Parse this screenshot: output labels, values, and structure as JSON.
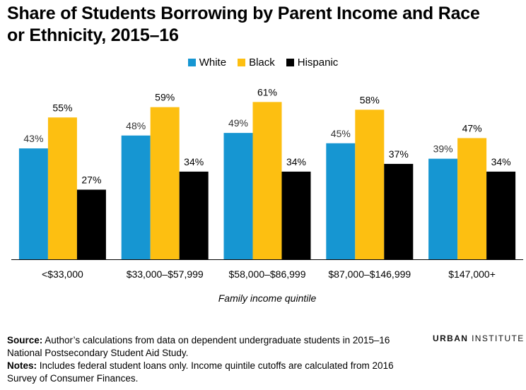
{
  "title": "Share of Students Borrowing by Parent Income and Race or Ethnicity, 2015–16",
  "chart_data": {
    "type": "bar",
    "title": "Share of Students Borrowing by Parent Income and Race or Ethnicity, 2015–16",
    "xlabel": "Family income quintile",
    "ylabel": "",
    "ylim": [
      0,
      70
    ],
    "grid": false,
    "legend_position": "top-center",
    "categories": [
      "<$33,000",
      "$33,000–$57,999",
      "$58,000–$86,999",
      "$87,000–$146,999",
      "$147,000+"
    ],
    "series": [
      {
        "name": "White",
        "color": "#1696d2",
        "values": [
          43,
          48,
          49,
          45,
          39
        ],
        "labels": [
          "43%",
          "48%",
          "49%",
          "45%",
          "39%"
        ]
      },
      {
        "name": "Black",
        "color": "#fdbf11",
        "values": [
          55,
          59,
          61,
          58,
          47
        ],
        "labels": [
          "55%",
          "59%",
          "61%",
          "58%",
          "47%"
        ]
      },
      {
        "name": "Hispanic",
        "color": "#000000",
        "values": [
          27,
          34,
          34,
          37,
          34
        ],
        "labels": [
          "27%",
          "34%",
          "34%",
          "37%",
          "34%"
        ]
      }
    ]
  },
  "footer": {
    "source_label": "Source:",
    "source_text": "Author’s calculations from data on dependent undergraduate students in 2015–16 National Postsecondary Student Aid Study.",
    "notes_label": "Notes:",
    "notes_text": "Includes federal student loans only. Income quintile cutoffs are calculated from 2016 Survey of Consumer Finances."
  },
  "logo": {
    "part1": "URBAN",
    "part2": "INSTITUTE"
  }
}
